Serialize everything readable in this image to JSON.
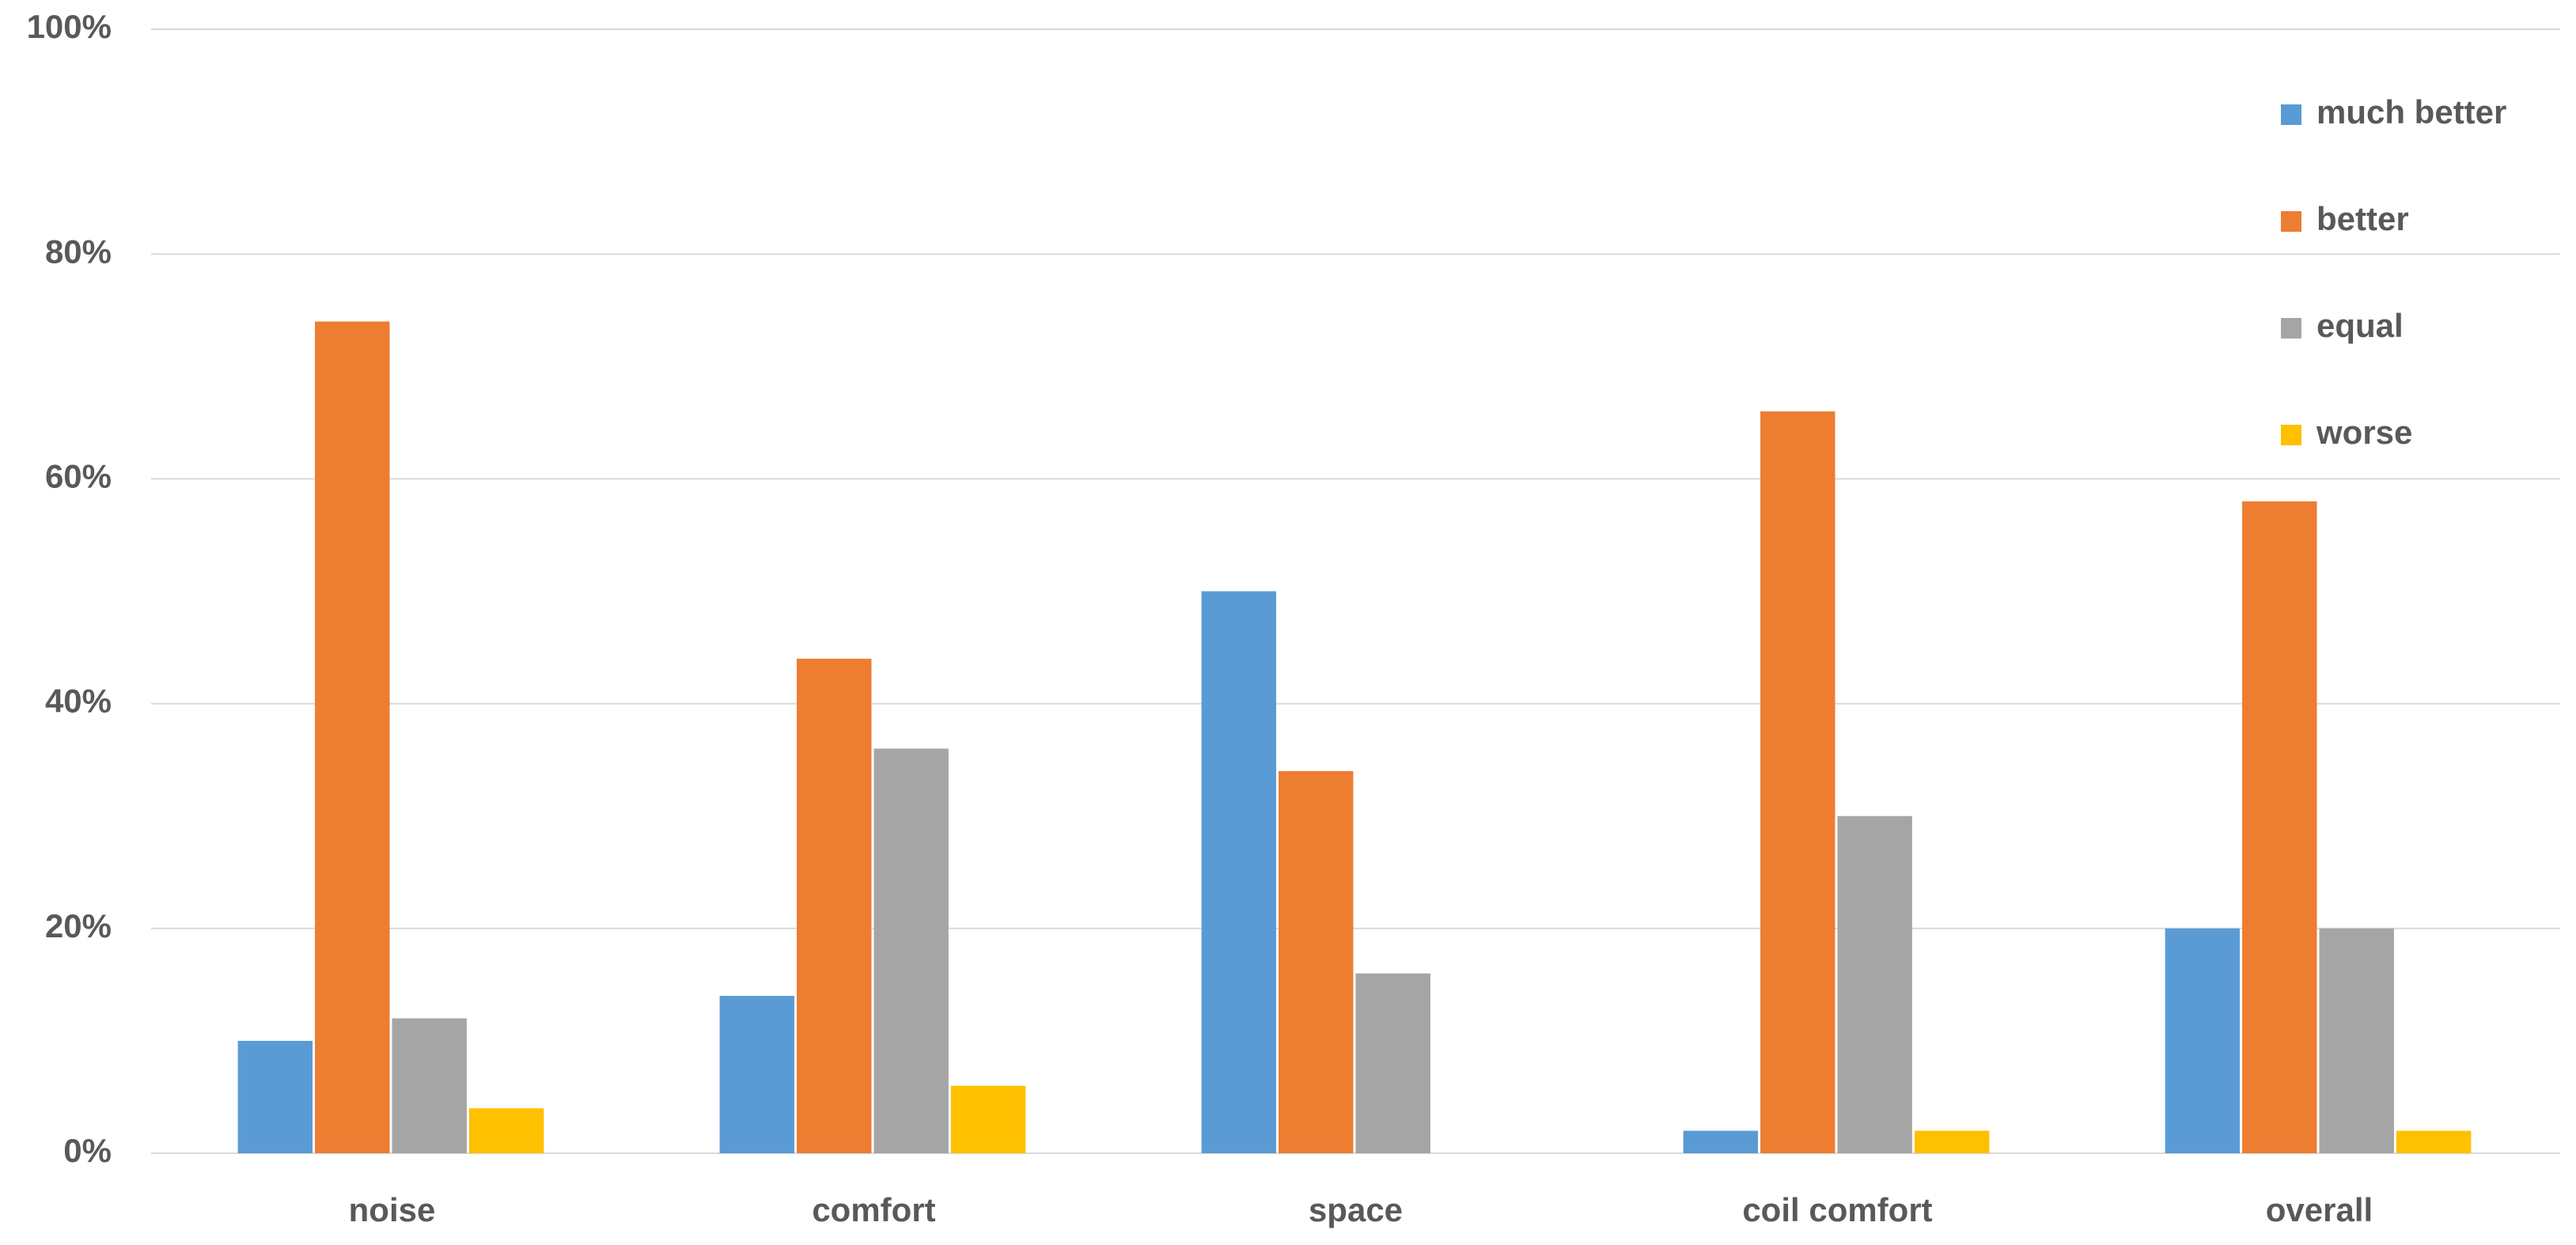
{
  "chart_data": {
    "type": "bar",
    "categories": [
      "noise",
      "comfort",
      "space",
      "coil comfort",
      "overall"
    ],
    "series": [
      {
        "name": "much better",
        "color": "#5b9bd5",
        "values": [
          10,
          14,
          50,
          2,
          20
        ]
      },
      {
        "name": "better",
        "color": "#ed7d31",
        "values": [
          74,
          44,
          34,
          66,
          58
        ]
      },
      {
        "name": "equal",
        "color": "#a5a5a5",
        "values": [
          12,
          36,
          16,
          30,
          20
        ]
      },
      {
        "name": "worse",
        "color": "#ffc000",
        "values": [
          4,
          6,
          0,
          2,
          2
        ]
      }
    ],
    "ylim": [
      0,
      100
    ],
    "yticks": [
      {
        "value": 0,
        "label": "0%"
      },
      {
        "value": 20,
        "label": "20%"
      },
      {
        "value": 40,
        "label": "40%"
      },
      {
        "value": 60,
        "label": "60%"
      },
      {
        "value": 80,
        "label": "80%"
      },
      {
        "value": 100,
        "label": "100%"
      }
    ],
    "grid": true,
    "legend": "upper right"
  }
}
